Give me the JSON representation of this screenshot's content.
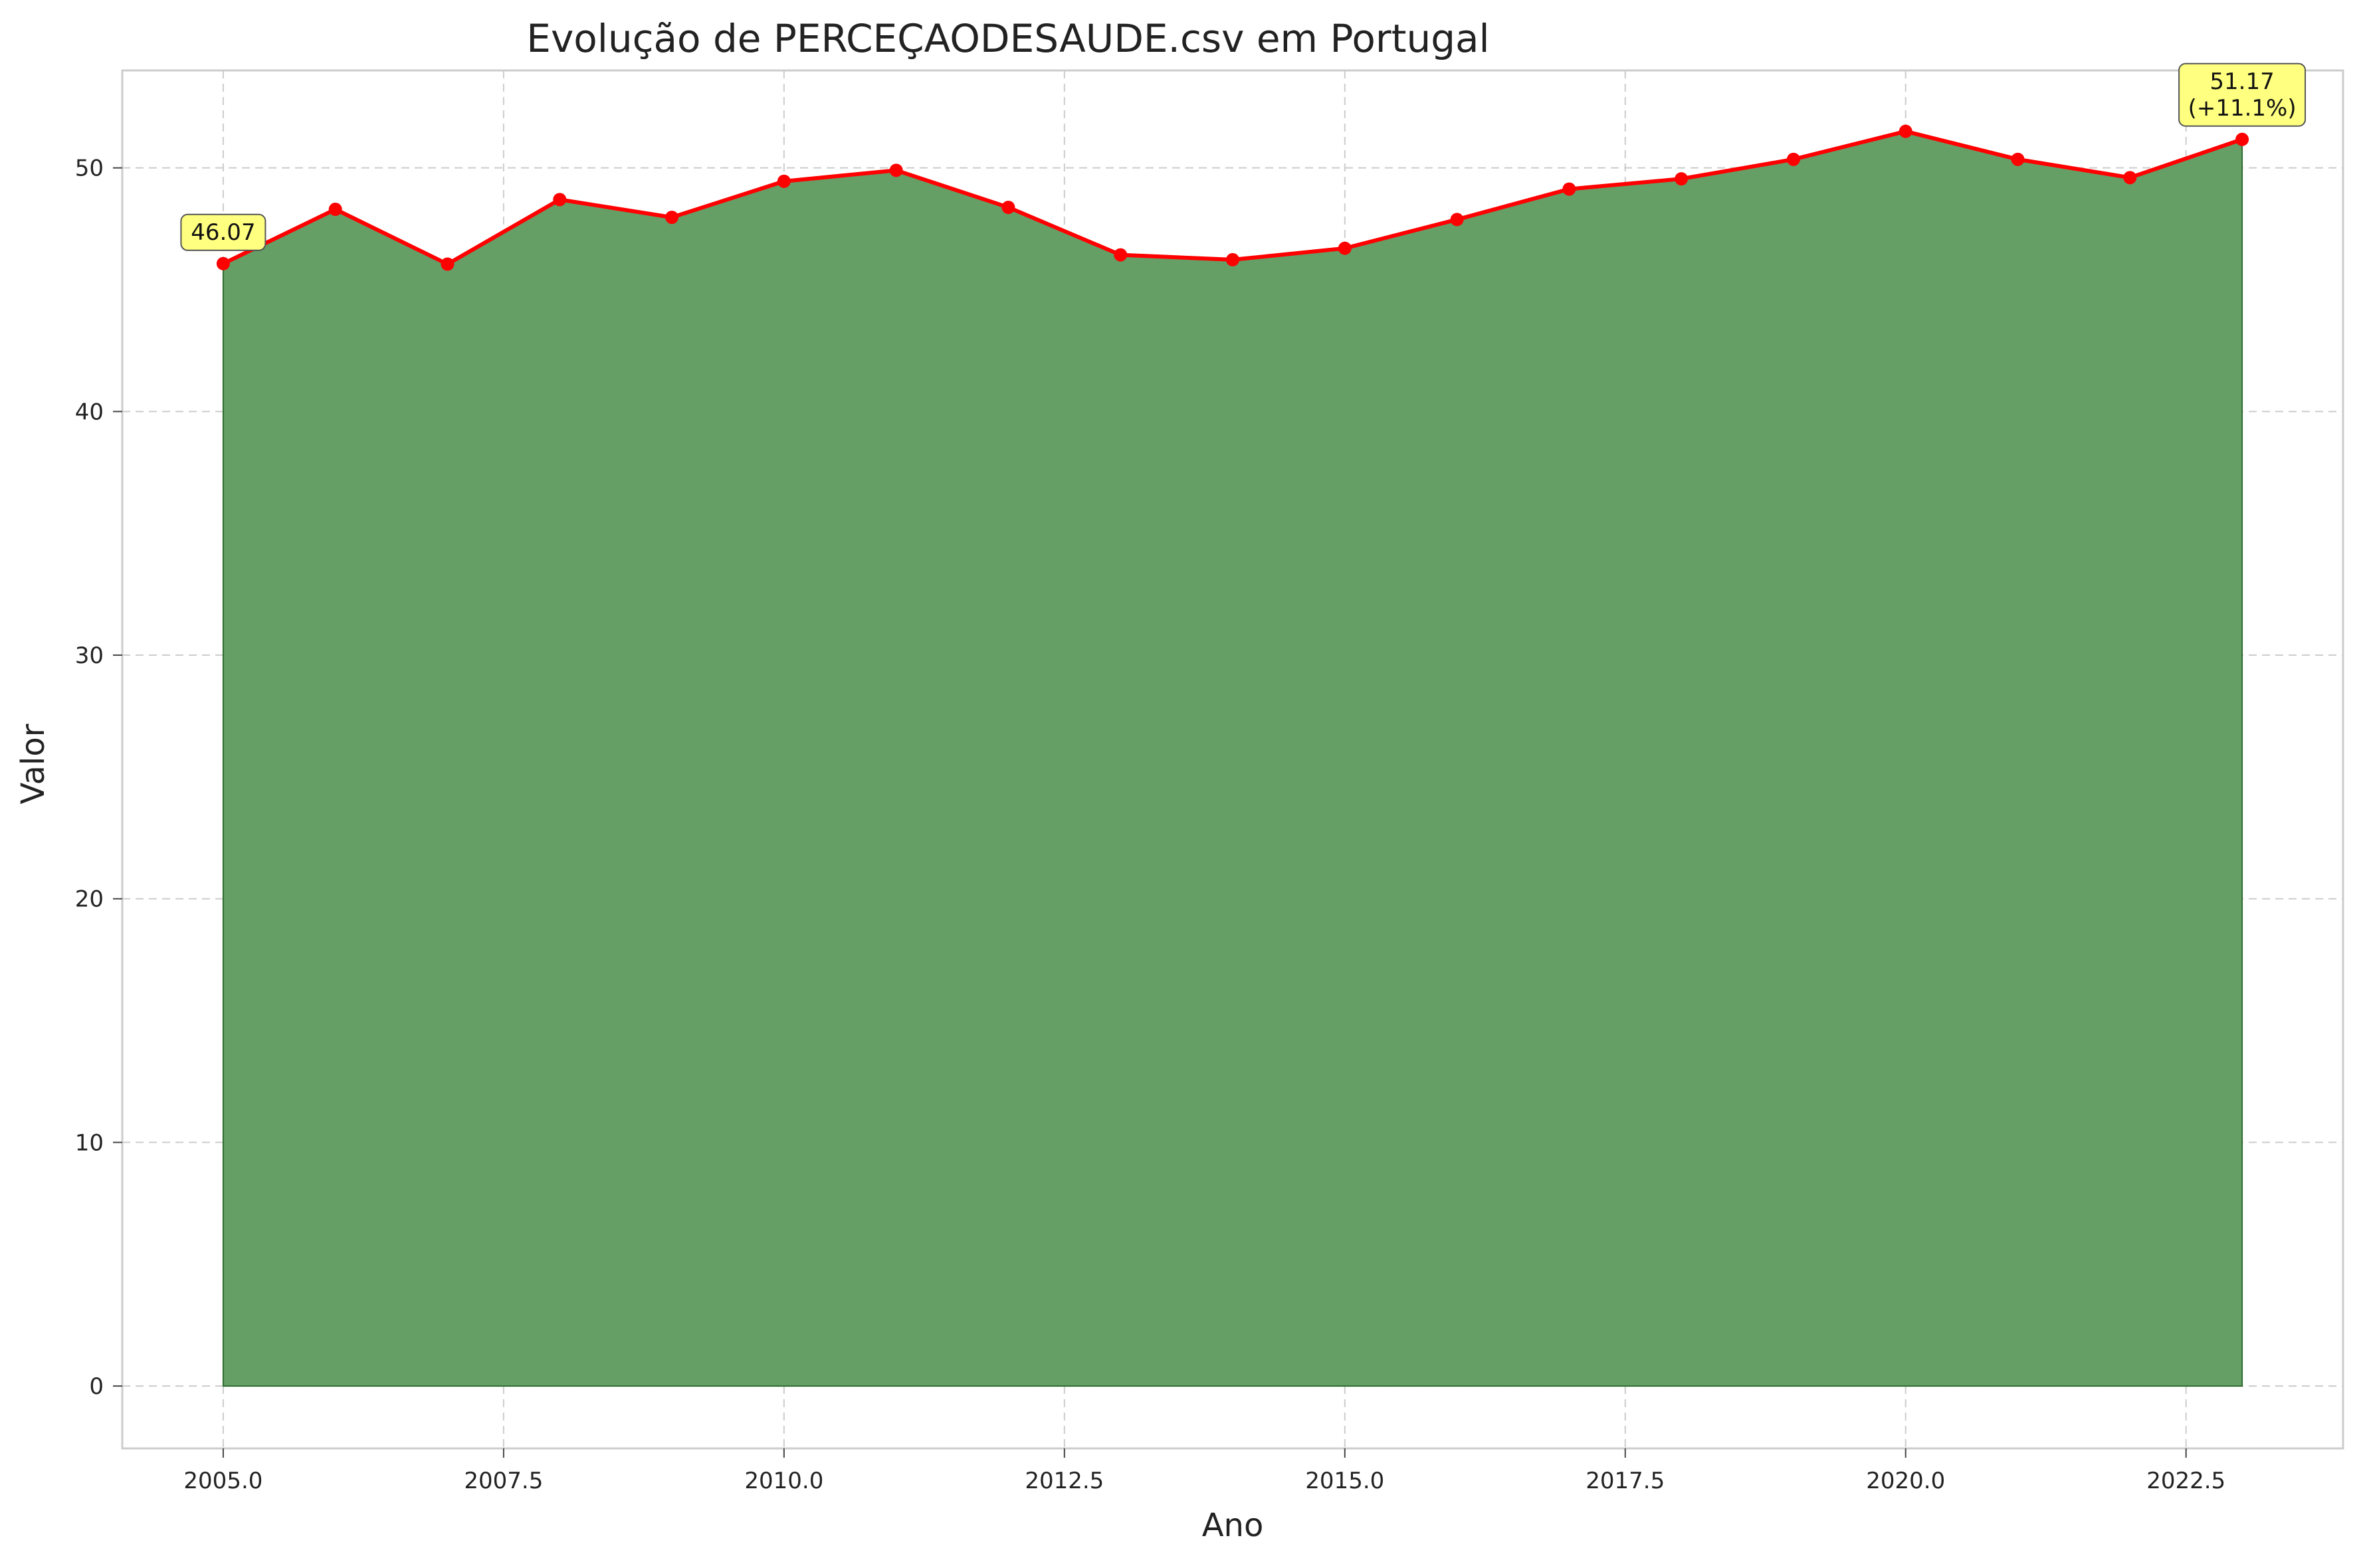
{
  "chart_data": {
    "type": "area",
    "title": "Evolução de PERCEÇAODESAUDE.csv em Portugal",
    "xlabel": "Ano",
    "ylabel": "Valor",
    "xlim": [
      2004.1,
      2023.9
    ],
    "ylim": [
      -2.56,
      54.0
    ],
    "grid": true,
    "xticks": [
      2005.0,
      2007.5,
      2010.0,
      2012.5,
      2015.0,
      2017.5,
      2020.0,
      2022.5
    ],
    "xtick_labels": [
      "2005.0",
      "2007.5",
      "2010.0",
      "2012.5",
      "2015.0",
      "2017.5",
      "2020.0",
      "2022.5"
    ],
    "yticks": [
      0,
      10,
      20,
      30,
      40,
      50
    ],
    "ytick_labels": [
      "0",
      "10",
      "20",
      "30",
      "40",
      "50"
    ],
    "x": [
      2005,
      2006,
      2007,
      2008,
      2009,
      2010,
      2011,
      2012,
      2013,
      2014,
      2015,
      2016,
      2017,
      2018,
      2019,
      2020,
      2021,
      2022,
      2023
    ],
    "values": [
      46.07,
      48.3,
      46.05,
      48.7,
      47.97,
      49.45,
      49.9,
      48.38,
      46.43,
      46.23,
      46.7,
      47.88,
      49.13,
      49.55,
      50.35,
      51.5,
      50.35,
      49.6,
      51.17
    ],
    "line_color": "#ff0000",
    "fill_color": "#669f66",
    "annotations": [
      {
        "x": 2005,
        "y": 46.07,
        "lines": [
          "46.07"
        ]
      },
      {
        "x": 2023,
        "y": 51.17,
        "lines": [
          "51.17",
          "(+11.1%)"
        ]
      }
    ],
    "annotation_bg": "#ffff80"
  }
}
